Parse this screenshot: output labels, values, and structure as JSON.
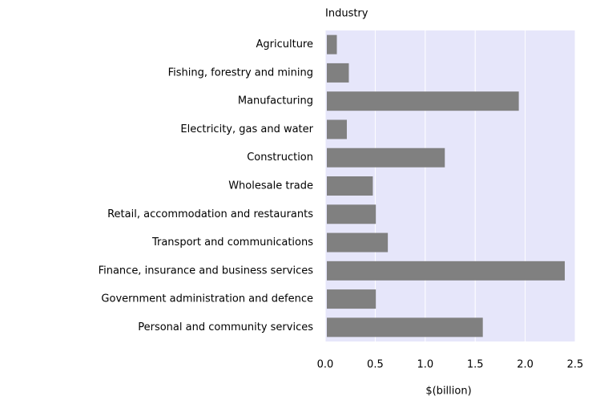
{
  "chart_data": {
    "type": "hbar",
    "ylabel": "Industry",
    "xlabel": "$(billion)",
    "categories": [
      "Agriculture",
      "Fishing, forestry and mining",
      "Manufacturing",
      "Electricity, gas and water",
      "Construction",
      "Wholesale trade",
      "Retail, accommodation and restaurants",
      "Transport and communications",
      "Finance, insurance and business services",
      "Government administration and defence",
      "Personal and community services"
    ],
    "values": [
      0.1,
      0.22,
      1.92,
      0.2,
      1.18,
      0.46,
      0.49,
      0.61,
      2.38,
      0.49,
      1.56
    ],
    "color": "#808080",
    "background": "#e6e6fa",
    "xlim": [
      0,
      2.5
    ],
    "xticks": [
      {
        "value": 0,
        "label": "0.0"
      },
      {
        "value": 0.5,
        "label": "0.5"
      },
      {
        "value": 1,
        "label": "1.0"
      },
      {
        "value": 1.5,
        "label": "1.5"
      },
      {
        "value": 2,
        "label": "2.0"
      },
      {
        "value": 2.5,
        "label": "2.5"
      }
    ],
    "grid": true
  }
}
